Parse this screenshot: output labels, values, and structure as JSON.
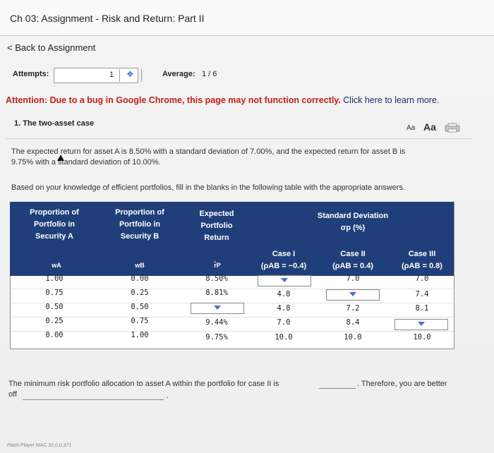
{
  "header": {
    "title": "Ch 03: Assignment - Risk and Return: Part II"
  },
  "nav": {
    "back": "< Back to Assignment"
  },
  "attempts": {
    "label": "Attempts:",
    "value": "1",
    "average_label": "Average:",
    "average_value": "1 / 6"
  },
  "attention": {
    "warning": "Attention: Due to a bug in Google Chrome, this page may not function correctly.",
    "link": "Click here to learn more."
  },
  "question": {
    "number_title": "1.  The two-asset case",
    "font_small": "Aa",
    "font_large": "Aa",
    "intro_line1": "The expected return for asset A is 8.50% with a standard deviation of 7.00%, and the expected return for asset B is",
    "intro_line2": "9.75% with a standard deviation of 10.00%.",
    "instructions": "Based on your knowledge of efficient portfolios, fill in the blanks in the following table with the appropriate answers."
  },
  "table": {
    "headers": {
      "col1": [
        "Proportion of",
        "Portfolio in",
        "Security A"
      ],
      "col2": [
        "Proportion of",
        "Portfolio in",
        "Security B"
      ],
      "col3": [
        "Expected",
        "Portfolio",
        "Return"
      ],
      "col4": [
        "Standard Deviation",
        "σp (%)"
      ],
      "sub_wa": "wA",
      "sub_wb": "wB",
      "sub_rp": "r̂P",
      "case1": [
        "Case I",
        "(ρAB = −0.4)"
      ],
      "case2": [
        "Case II",
        "(ρAB = 0.4)"
      ],
      "case3": [
        "Case III",
        "(ρAB = 0.8)"
      ]
    },
    "rows": [
      {
        "wa": "1.00",
        "wb": "0.00",
        "rp": "8.50%",
        "c1": "",
        "c2": "7.0",
        "c3": "7.0"
      },
      {
        "wa": "0.75",
        "wb": "0.25",
        "rp": "8.81%",
        "c1": "4.8",
        "c2": "",
        "c3": "7.4"
      },
      {
        "wa": "0.50",
        "wb": "0.50",
        "rp": "",
        "c1": "4.8",
        "c2": "7.2",
        "c3": "8.1"
      },
      {
        "wa": "0.25",
        "wb": "0.75",
        "rp": "9.44%",
        "c1": "7.0",
        "c2": "8.4",
        "c3": ""
      },
      {
        "wa": "0.00",
        "wb": "1.00",
        "rp": "9.75%",
        "c1": "10.0",
        "c2": "10.0",
        "c3": "10.0"
      }
    ]
  },
  "bottom": {
    "minrisk": "The minimum risk portfolio allocation to asset A within the portfolio for case II is",
    "therefore": ". Therefore, you are better",
    "off": "off",
    "period": "."
  },
  "footer": {
    "text": "Flash Player MAC 32,0,0,371"
  },
  "colors": {
    "header_bg": "#203f7a",
    "warning_red": "#c0201a",
    "dropdown_arrow": "#4a6fd0"
  }
}
